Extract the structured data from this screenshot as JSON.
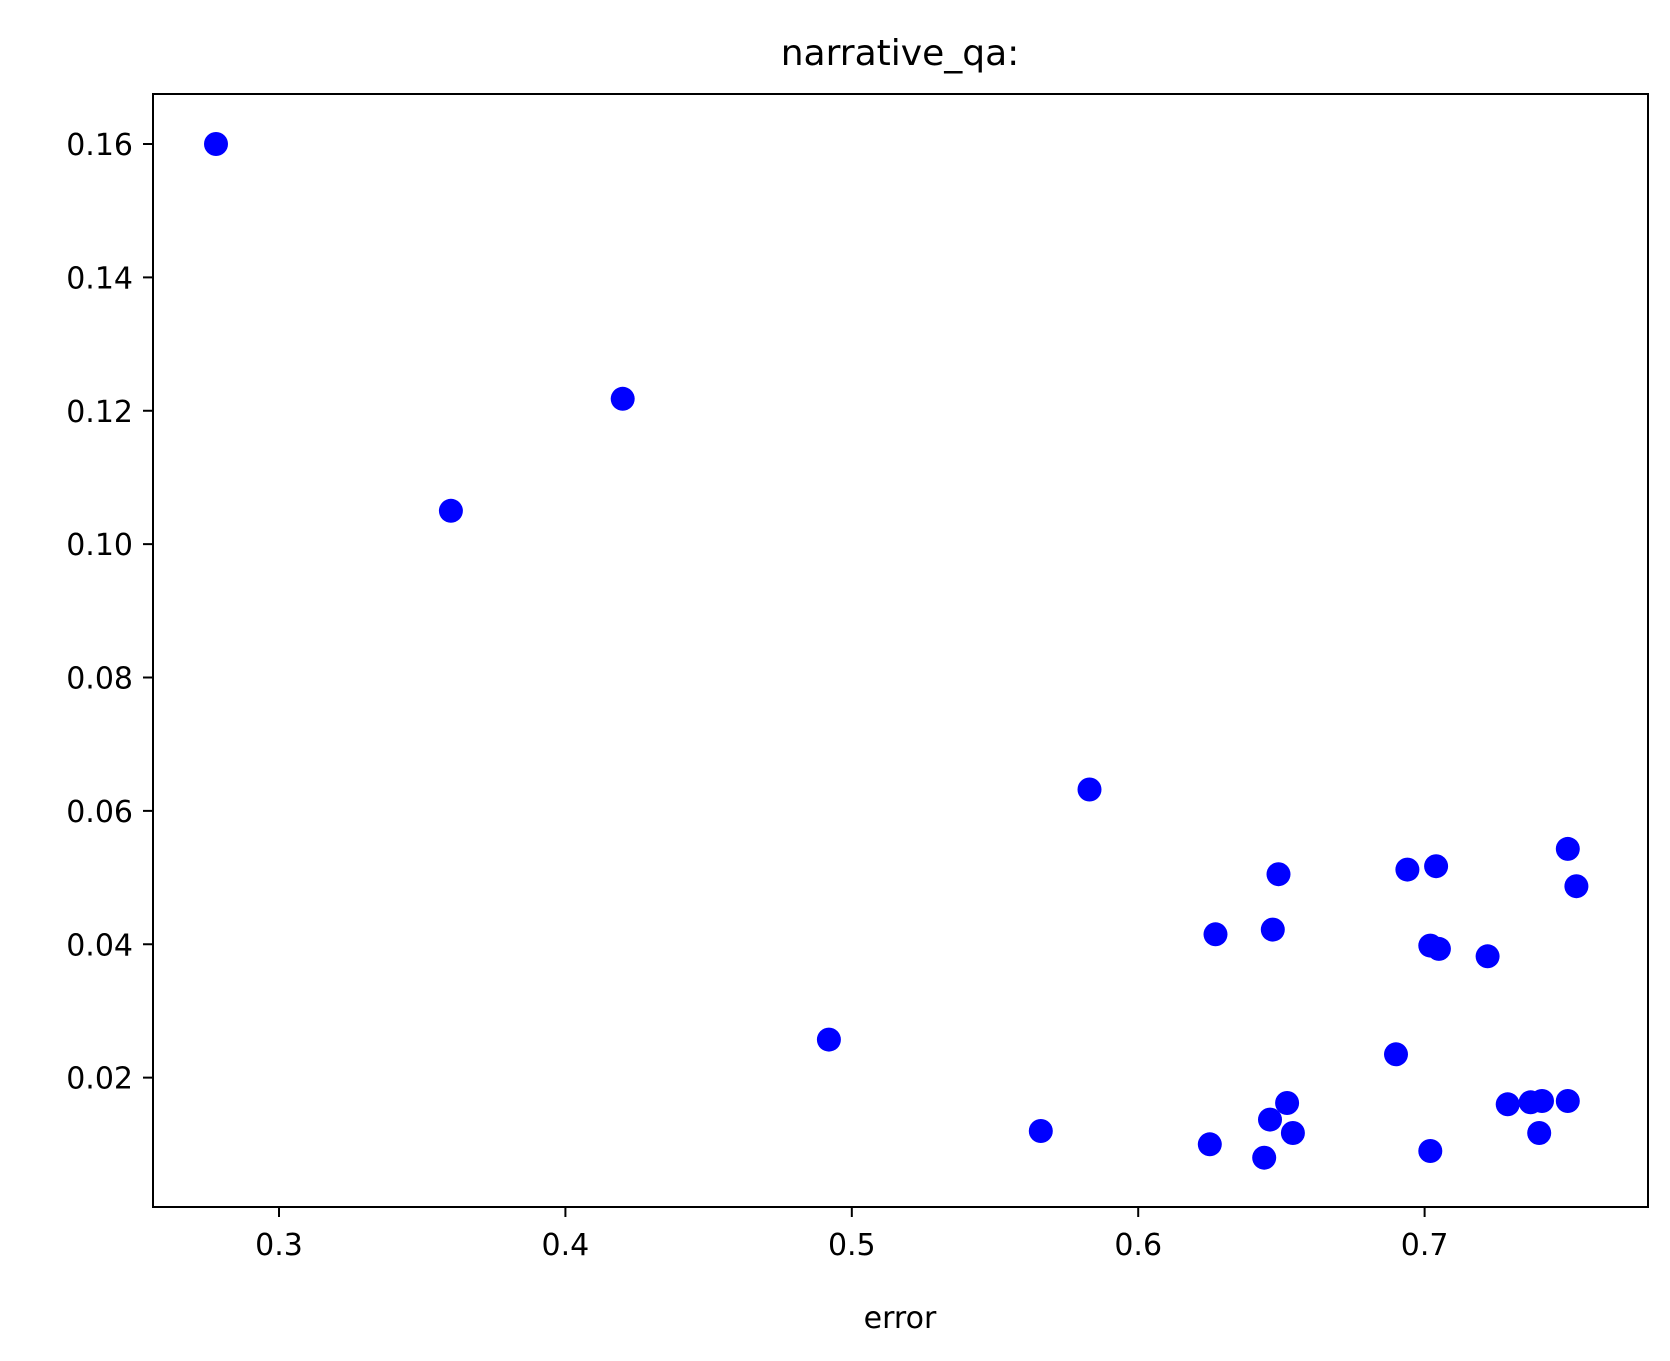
{
  "chart_data": {
    "type": "scatter",
    "title": "narrative_qa:",
    "xlabel": "error",
    "ylabel": "",
    "xlim": [
      0.256,
      0.778
    ],
    "ylim": [
      0.0006,
      0.1675
    ],
    "xticks": [
      0.3,
      0.4,
      0.5,
      0.6,
      0.7
    ],
    "xtick_labels": [
      "0.3",
      "0.4",
      "0.5",
      "0.6",
      "0.7"
    ],
    "yticks": [
      0.02,
      0.04,
      0.06,
      0.08,
      0.1,
      0.12,
      0.14,
      0.16
    ],
    "ytick_labels": [
      "0.02",
      "0.04",
      "0.06",
      "0.08",
      "0.10",
      "0.12",
      "0.14",
      "0.16"
    ],
    "grid": false,
    "marker_color": "#0000ff",
    "series": [
      {
        "points": [
          {
            "x": 0.278,
            "y": 0.16
          },
          {
            "x": 0.36,
            "y": 0.105
          },
          {
            "x": 0.42,
            "y": 0.1218
          },
          {
            "x": 0.492,
            "y": 0.0257
          },
          {
            "x": 0.566,
            "y": 0.012
          },
          {
            "x": 0.583,
            "y": 0.0632
          },
          {
            "x": 0.625,
            "y": 0.01
          },
          {
            "x": 0.627,
            "y": 0.0415
          },
          {
            "x": 0.644,
            "y": 0.008
          },
          {
            "x": 0.646,
            "y": 0.0137
          },
          {
            "x": 0.647,
            "y": 0.0422
          },
          {
            "x": 0.649,
            "y": 0.0505
          },
          {
            "x": 0.652,
            "y": 0.0162
          },
          {
            "x": 0.654,
            "y": 0.0117
          },
          {
            "x": 0.69,
            "y": 0.0235
          },
          {
            "x": 0.694,
            "y": 0.0512
          },
          {
            "x": 0.702,
            "y": 0.009
          },
          {
            "x": 0.702,
            "y": 0.0398
          },
          {
            "x": 0.704,
            "y": 0.0517
          },
          {
            "x": 0.705,
            "y": 0.0393
          },
          {
            "x": 0.722,
            "y": 0.0382
          },
          {
            "x": 0.729,
            "y": 0.016
          },
          {
            "x": 0.737,
            "y": 0.0163
          },
          {
            "x": 0.74,
            "y": 0.0117
          },
          {
            "x": 0.741,
            "y": 0.0165
          },
          {
            "x": 0.75,
            "y": 0.0543
          },
          {
            "x": 0.75,
            "y": 0.0165
          },
          {
            "x": 0.753,
            "y": 0.0487
          }
        ]
      }
    ]
  }
}
